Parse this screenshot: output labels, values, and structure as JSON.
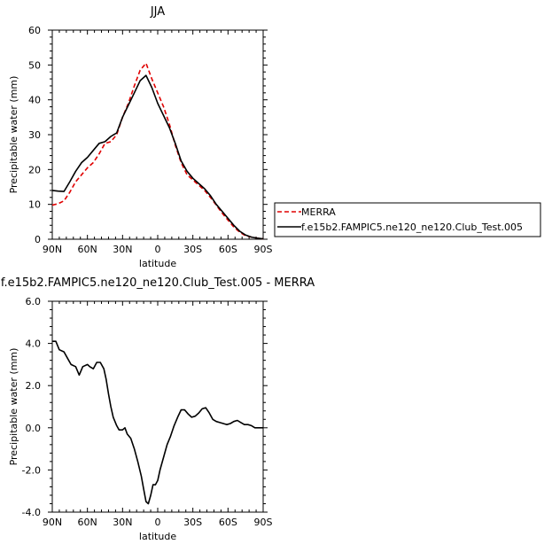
{
  "chart_data": [
    {
      "type": "line",
      "title": "JJA",
      "xlabel": "latitude",
      "ylabel": "Precipitable water (mm)",
      "xlim": [
        90,
        -90
      ],
      "ylim": [
        0,
        60
      ],
      "x_ticks": [
        {
          "value": 90,
          "label": "90N"
        },
        {
          "value": 60,
          "label": "60N"
        },
        {
          "value": 30,
          "label": "30N"
        },
        {
          "value": 0,
          "label": "0"
        },
        {
          "value": -30,
          "label": "30S"
        },
        {
          "value": -60,
          "label": "60S"
        },
        {
          "value": -90,
          "label": "90S"
        }
      ],
      "y_ticks": [
        {
          "value": 0,
          "label": "0"
        },
        {
          "value": 10,
          "label": "10"
        },
        {
          "value": 20,
          "label": "20"
        },
        {
          "value": 30,
          "label": "30"
        },
        {
          "value": 40,
          "label": "40"
        },
        {
          "value": 50,
          "label": "50"
        },
        {
          "value": 60,
          "label": "60"
        }
      ],
      "legend_position": "right",
      "series": [
        {
          "name": "MERRA",
          "color": "#e00000",
          "dash": true,
          "x": [
            90,
            85,
            80,
            75,
            70,
            65,
            60,
            55,
            50,
            45,
            40,
            35,
            30,
            25,
            20,
            15,
            10,
            5,
            0,
            -5,
            -10,
            -15,
            -20,
            -25,
            -30,
            -35,
            -40,
            -45,
            -50,
            -55,
            -60,
            -65,
            -70,
            -75,
            -80,
            -85,
            -90
          ],
          "y": [
            9.8,
            10.2,
            11.0,
            13.5,
            16.5,
            18.5,
            20.5,
            22.0,
            24.5,
            27.5,
            28.0,
            30.0,
            35.0,
            39.0,
            44.0,
            48.5,
            50.5,
            46.0,
            42.0,
            38.0,
            33.0,
            27.0,
            22.0,
            18.5,
            17.0,
            15.5,
            14.0,
            12.0,
            9.8,
            7.5,
            5.5,
            3.5,
            2.0,
            1.0,
            0.6,
            0.3,
            0.1
          ]
        },
        {
          "name": "f.e15b2.FAMPIC5.ne120_ne120.Club_Test.005",
          "color": "#000000",
          "dash": false,
          "x": [
            90,
            85,
            80,
            75,
            70,
            65,
            60,
            55,
            50,
            45,
            40,
            35,
            30,
            25,
            20,
            15,
            10,
            5,
            0,
            -5,
            -10,
            -15,
            -20,
            -25,
            -30,
            -35,
            -40,
            -45,
            -50,
            -55,
            -60,
            -65,
            -70,
            -75,
            -80,
            -85,
            -90
          ],
          "y": [
            14.0,
            13.8,
            13.7,
            16.5,
            19.5,
            22.0,
            23.5,
            25.5,
            27.5,
            28.0,
            29.5,
            30.5,
            35.0,
            38.5,
            42.0,
            45.5,
            47.0,
            43.5,
            39.0,
            35.5,
            32.0,
            27.5,
            22.5,
            19.5,
            17.5,
            16.0,
            14.5,
            12.5,
            10.0,
            8.0,
            6.0,
            4.0,
            2.3,
            1.2,
            0.6,
            0.3,
            0.1
          ]
        }
      ]
    },
    {
      "type": "line",
      "title": "f.e15b2.FAMPIC5.ne120_ne120.Club_Test.005 - MERRA",
      "xlabel": "latitude",
      "ylabel": "Precipitable water (mm)",
      "xlim": [
        90,
        -90
      ],
      "ylim": [
        -4,
        6
      ],
      "x_ticks": [
        {
          "value": 90,
          "label": "90N"
        },
        {
          "value": 60,
          "label": "60N"
        },
        {
          "value": 30,
          "label": "30N"
        },
        {
          "value": 0,
          "label": "0"
        },
        {
          "value": -30,
          "label": "30S"
        },
        {
          "value": -60,
          "label": "60S"
        },
        {
          "value": -90,
          "label": "90S"
        }
      ],
      "y_ticks": [
        {
          "value": -4,
          "label": "-4.0"
        },
        {
          "value": -2,
          "label": "-2.0"
        },
        {
          "value": 0,
          "label": "0.0"
        },
        {
          "value": 2,
          "label": "2.0"
        },
        {
          "value": 4,
          "label": "4.0"
        },
        {
          "value": 6,
          "label": "6.0"
        }
      ],
      "series": [
        {
          "color": "#000000",
          "dash": false,
          "x": [
            90,
            87,
            84,
            80,
            77,
            74,
            70,
            67,
            64,
            60,
            58,
            55,
            52,
            49,
            46,
            44,
            42,
            40,
            38,
            35,
            33,
            30,
            28,
            26,
            23,
            20,
            17,
            14,
            12,
            10,
            8,
            6,
            4,
            2,
            0,
            -2,
            -5,
            -8,
            -11,
            -14,
            -17,
            -20,
            -23,
            -26,
            -29,
            -32,
            -35,
            -38,
            -41,
            -44,
            -47,
            -50,
            -53,
            -56,
            -59,
            -62,
            -65,
            -68,
            -71,
            -74,
            -77,
            -80,
            -83,
            -86,
            -90
          ],
          "y": [
            4.1,
            4.1,
            3.7,
            3.6,
            3.3,
            3.0,
            2.9,
            2.5,
            2.9,
            3.0,
            2.9,
            2.8,
            3.1,
            3.1,
            2.8,
            2.3,
            1.6,
            1.0,
            0.5,
            0.1,
            -0.1,
            -0.1,
            0.0,
            -0.3,
            -0.5,
            -1.0,
            -1.6,
            -2.3,
            -2.9,
            -3.5,
            -3.6,
            -3.2,
            -2.7,
            -2.7,
            -2.5,
            -2.0,
            -1.4,
            -0.8,
            -0.4,
            0.1,
            0.5,
            0.85,
            0.85,
            0.65,
            0.5,
            0.55,
            0.7,
            0.9,
            0.95,
            0.7,
            0.4,
            0.3,
            0.25,
            0.2,
            0.15,
            0.2,
            0.3,
            0.35,
            0.25,
            0.15,
            0.15,
            0.1,
            0.0,
            0.0,
            0.0
          ]
        }
      ]
    }
  ]
}
